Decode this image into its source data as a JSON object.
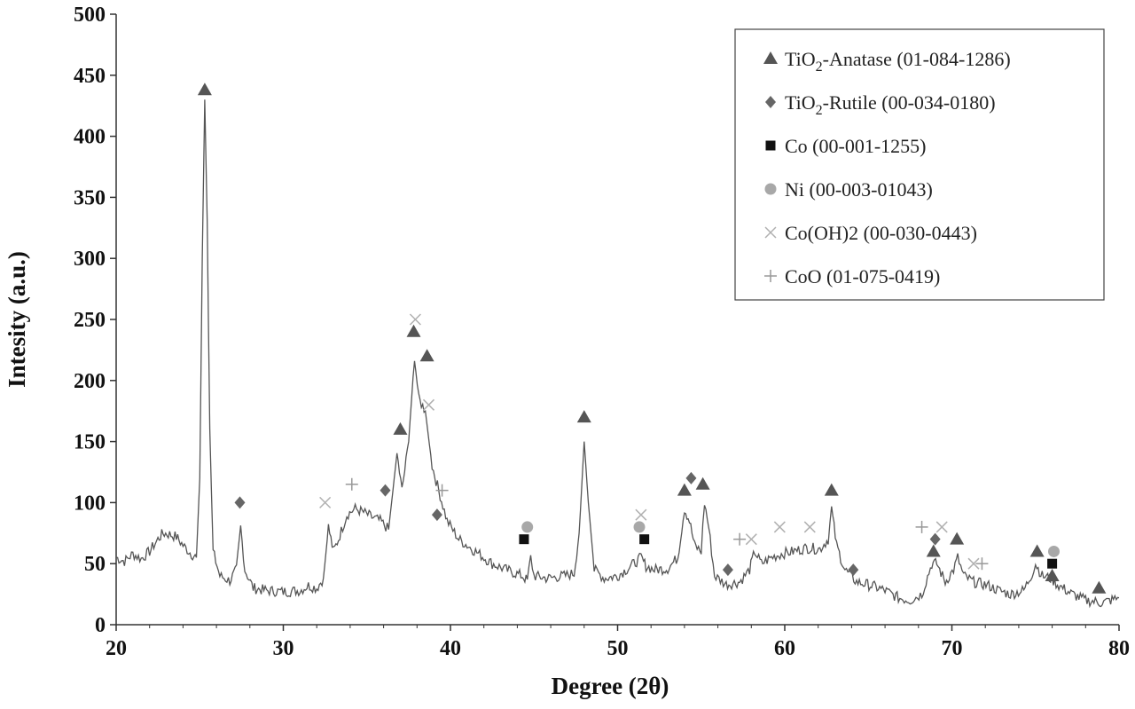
{
  "chart_data": {
    "type": "line",
    "title": "",
    "xlabel": "Degree (2θ)",
    "ylabel": "Intesity (a.u.)",
    "xlim": [
      20,
      80
    ],
    "ylim": [
      0,
      500
    ],
    "x_ticks": [
      20,
      30,
      40,
      50,
      60,
      70,
      80
    ],
    "y_ticks": [
      0,
      50,
      100,
      150,
      200,
      250,
      300,
      350,
      400,
      450,
      500
    ],
    "grid": false,
    "legend_position": "top-right",
    "series": [
      {
        "color": "#555555",
        "points": [
          [
            20.0,
            55
          ],
          [
            20.5,
            52
          ],
          [
            21.0,
            58
          ],
          [
            21.5,
            54
          ],
          [
            22.0,
            60
          ],
          [
            22.5,
            70
          ],
          [
            22.8,
            75
          ],
          [
            23.2,
            74
          ],
          [
            23.6,
            72
          ],
          [
            24.0,
            65
          ],
          [
            24.5,
            58
          ],
          [
            24.8,
            55
          ],
          [
            25.0,
            120
          ],
          [
            25.15,
            300
          ],
          [
            25.3,
            430
          ],
          [
            25.45,
            330
          ],
          [
            25.6,
            160
          ],
          [
            25.8,
            60
          ],
          [
            26.2,
            40
          ],
          [
            26.8,
            36
          ],
          [
            27.2,
            45
          ],
          [
            27.45,
            80
          ],
          [
            27.7,
            45
          ],
          [
            28.2,
            30
          ],
          [
            29.0,
            28
          ],
          [
            30.0,
            27
          ],
          [
            31.0,
            28
          ],
          [
            31.5,
            32
          ],
          [
            32.0,
            30
          ],
          [
            32.4,
            38
          ],
          [
            32.7,
            80
          ],
          [
            33.0,
            60
          ],
          [
            33.3,
            70
          ],
          [
            33.8,
            90
          ],
          [
            34.3,
            95
          ],
          [
            34.8,
            92
          ],
          [
            35.3,
            88
          ],
          [
            35.8,
            85
          ],
          [
            36.3,
            78
          ],
          [
            36.8,
            140
          ],
          [
            37.1,
            110
          ],
          [
            37.5,
            150
          ],
          [
            37.85,
            220
          ],
          [
            38.1,
            185
          ],
          [
            38.5,
            175
          ],
          [
            38.9,
            130
          ],
          [
            39.3,
            110
          ],
          [
            39.8,
            85
          ],
          [
            40.5,
            70
          ],
          [
            41.5,
            60
          ],
          [
            42.5,
            50
          ],
          [
            43.5,
            44
          ],
          [
            44.3,
            40
          ],
          [
            44.6,
            36
          ],
          [
            44.8,
            55
          ],
          [
            45.0,
            40
          ],
          [
            45.8,
            38
          ],
          [
            46.8,
            40
          ],
          [
            47.4,
            42
          ],
          [
            47.7,
            75
          ],
          [
            48.0,
            150
          ],
          [
            48.25,
            100
          ],
          [
            48.6,
            45
          ],
          [
            49.2,
            38
          ],
          [
            50.0,
            40
          ],
          [
            50.8,
            48
          ],
          [
            51.4,
            55
          ],
          [
            51.7,
            48
          ],
          [
            52.2,
            45
          ],
          [
            53.0,
            46
          ],
          [
            53.6,
            55
          ],
          [
            54.0,
            95
          ],
          [
            54.3,
            85
          ],
          [
            54.6,
            65
          ],
          [
            55.0,
            60
          ],
          [
            55.2,
            100
          ],
          [
            55.45,
            80
          ],
          [
            55.8,
            40
          ],
          [
            56.5,
            33
          ],
          [
            57.3,
            35
          ],
          [
            57.9,
            45
          ],
          [
            58.2,
            60
          ],
          [
            58.6,
            50
          ],
          [
            59.2,
            55
          ],
          [
            59.8,
            58
          ],
          [
            60.5,
            60
          ],
          [
            61.3,
            63
          ],
          [
            62.1,
            62
          ],
          [
            62.6,
            70
          ],
          [
            62.8,
            95
          ],
          [
            63.1,
            65
          ],
          [
            63.6,
            45
          ],
          [
            64.3,
            35
          ],
          [
            65.2,
            32
          ],
          [
            66.0,
            28
          ],
          [
            66.8,
            22
          ],
          [
            67.5,
            20
          ],
          [
            68.2,
            25
          ],
          [
            68.8,
            50
          ],
          [
            69.1,
            50
          ],
          [
            69.6,
            35
          ],
          [
            70.1,
            45
          ],
          [
            70.35,
            55
          ],
          [
            70.7,
            40
          ],
          [
            71.3,
            35
          ],
          [
            72.2,
            32
          ],
          [
            72.8,
            28
          ],
          [
            73.5,
            25
          ],
          [
            74.3,
            28
          ],
          [
            74.8,
            42
          ],
          [
            75.0,
            50
          ],
          [
            75.4,
            40
          ],
          [
            75.9,
            38
          ],
          [
            76.4,
            32
          ],
          [
            77.2,
            25
          ],
          [
            78.0,
            20
          ],
          [
            79.0,
            18
          ],
          [
            79.5,
            20
          ],
          [
            80.0,
            22
          ]
        ]
      }
    ],
    "markers": [
      {
        "phase": "anatase",
        "points": [
          [
            25.3,
            438
          ],
          [
            37.0,
            160
          ],
          [
            37.8,
            240
          ],
          [
            38.6,
            220
          ],
          [
            48.0,
            170
          ],
          [
            54.0,
            110
          ],
          [
            55.1,
            115
          ],
          [
            62.8,
            110
          ],
          [
            68.9,
            60
          ],
          [
            70.3,
            70
          ],
          [
            75.1,
            60
          ],
          [
            76.0,
            40
          ],
          [
            78.8,
            30
          ]
        ]
      },
      {
        "phase": "rutile",
        "points": [
          [
            27.4,
            100
          ],
          [
            36.1,
            110
          ],
          [
            39.2,
            90
          ],
          [
            54.4,
            120
          ],
          [
            56.6,
            45
          ],
          [
            64.1,
            45
          ],
          [
            69.0,
            70
          ]
        ]
      },
      {
        "phase": "co",
        "points": [
          [
            44.4,
            70
          ],
          [
            51.6,
            70
          ],
          [
            76.0,
            50
          ]
        ]
      },
      {
        "phase": "ni",
        "points": [
          [
            44.6,
            80
          ],
          [
            51.3,
            80
          ],
          [
            76.1,
            60
          ]
        ]
      },
      {
        "phase": "coh",
        "points": [
          [
            32.5,
            100
          ],
          [
            37.9,
            250
          ],
          [
            38.7,
            180
          ],
          [
            51.4,
            90
          ],
          [
            58.0,
            70
          ],
          [
            59.7,
            80
          ],
          [
            61.5,
            80
          ],
          [
            69.4,
            80
          ],
          [
            71.3,
            50
          ]
        ]
      },
      {
        "phase": "coo",
        "points": [
          [
            34.1,
            115
          ],
          [
            39.5,
            110
          ],
          [
            57.3,
            70
          ],
          [
            68.2,
            80
          ],
          [
            71.8,
            50
          ]
        ]
      }
    ]
  },
  "legend": {
    "items": [
      {
        "key": "anatase",
        "symbol": "triangle",
        "color": "#555555",
        "base": "TiO",
        "sub": "2",
        "rest": "-Anatase (01-084-1286)"
      },
      {
        "key": "rutile",
        "symbol": "diamond",
        "color": "#666666",
        "base": "TiO",
        "sub": "2",
        "rest": "-Rutile (00-034-0180)"
      },
      {
        "key": "co",
        "symbol": "square",
        "color": "#111111",
        "base": "Co (00-001-1255)",
        "sub": "",
        "rest": ""
      },
      {
        "key": "ni",
        "symbol": "circle",
        "color": "#a8a8a8",
        "base": "Ni (00-003-01043)",
        "sub": "",
        "rest": ""
      },
      {
        "key": "coh",
        "symbol": "x",
        "color": "#b0b0b0",
        "base": "Co(OH)2 (00-030-0443)",
        "sub": "",
        "rest": ""
      },
      {
        "key": "coo",
        "symbol": "plus",
        "color": "#999999",
        "base": "CoO (01-075-0419)",
        "sub": "",
        "rest": ""
      }
    ]
  }
}
